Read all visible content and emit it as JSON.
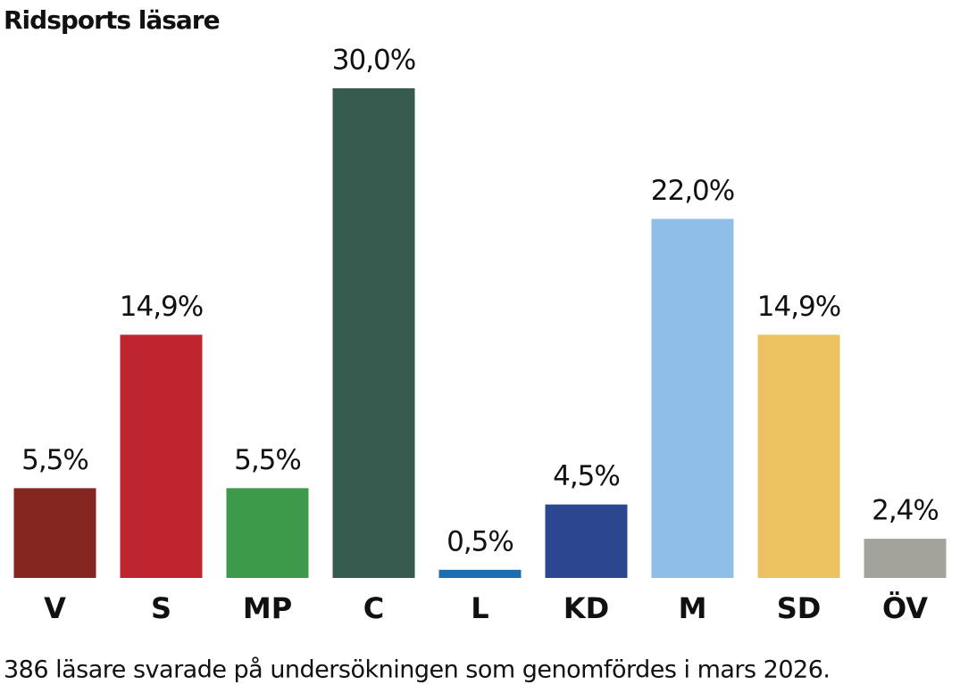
{
  "chart_data": {
    "type": "bar",
    "title": "Ridsports läsare",
    "categories": [
      "V",
      "S",
      "MP",
      "C",
      "L",
      "KD",
      "M",
      "SD",
      "ÖV"
    ],
    "values": [
      5.5,
      14.9,
      5.5,
      30.0,
      0.5,
      4.5,
      22.0,
      14.9,
      2.4
    ],
    "value_labels": [
      "5,5%",
      "14,9%",
      "5,5%",
      "30,0%",
      "0,5%",
      "4,5%",
      "22,0%",
      "14,9%",
      "2,4%"
    ],
    "colors": [
      "#862621",
      "#be252f",
      "#3d9a4b",
      "#365a4e",
      "#1b6fb0",
      "#2c4690",
      "#8fbee8",
      "#ecc15f",
      "#a3a39b"
    ],
    "caption": "386 läsare svarade på undersökningen som genomfördes i mars 2026."
  }
}
